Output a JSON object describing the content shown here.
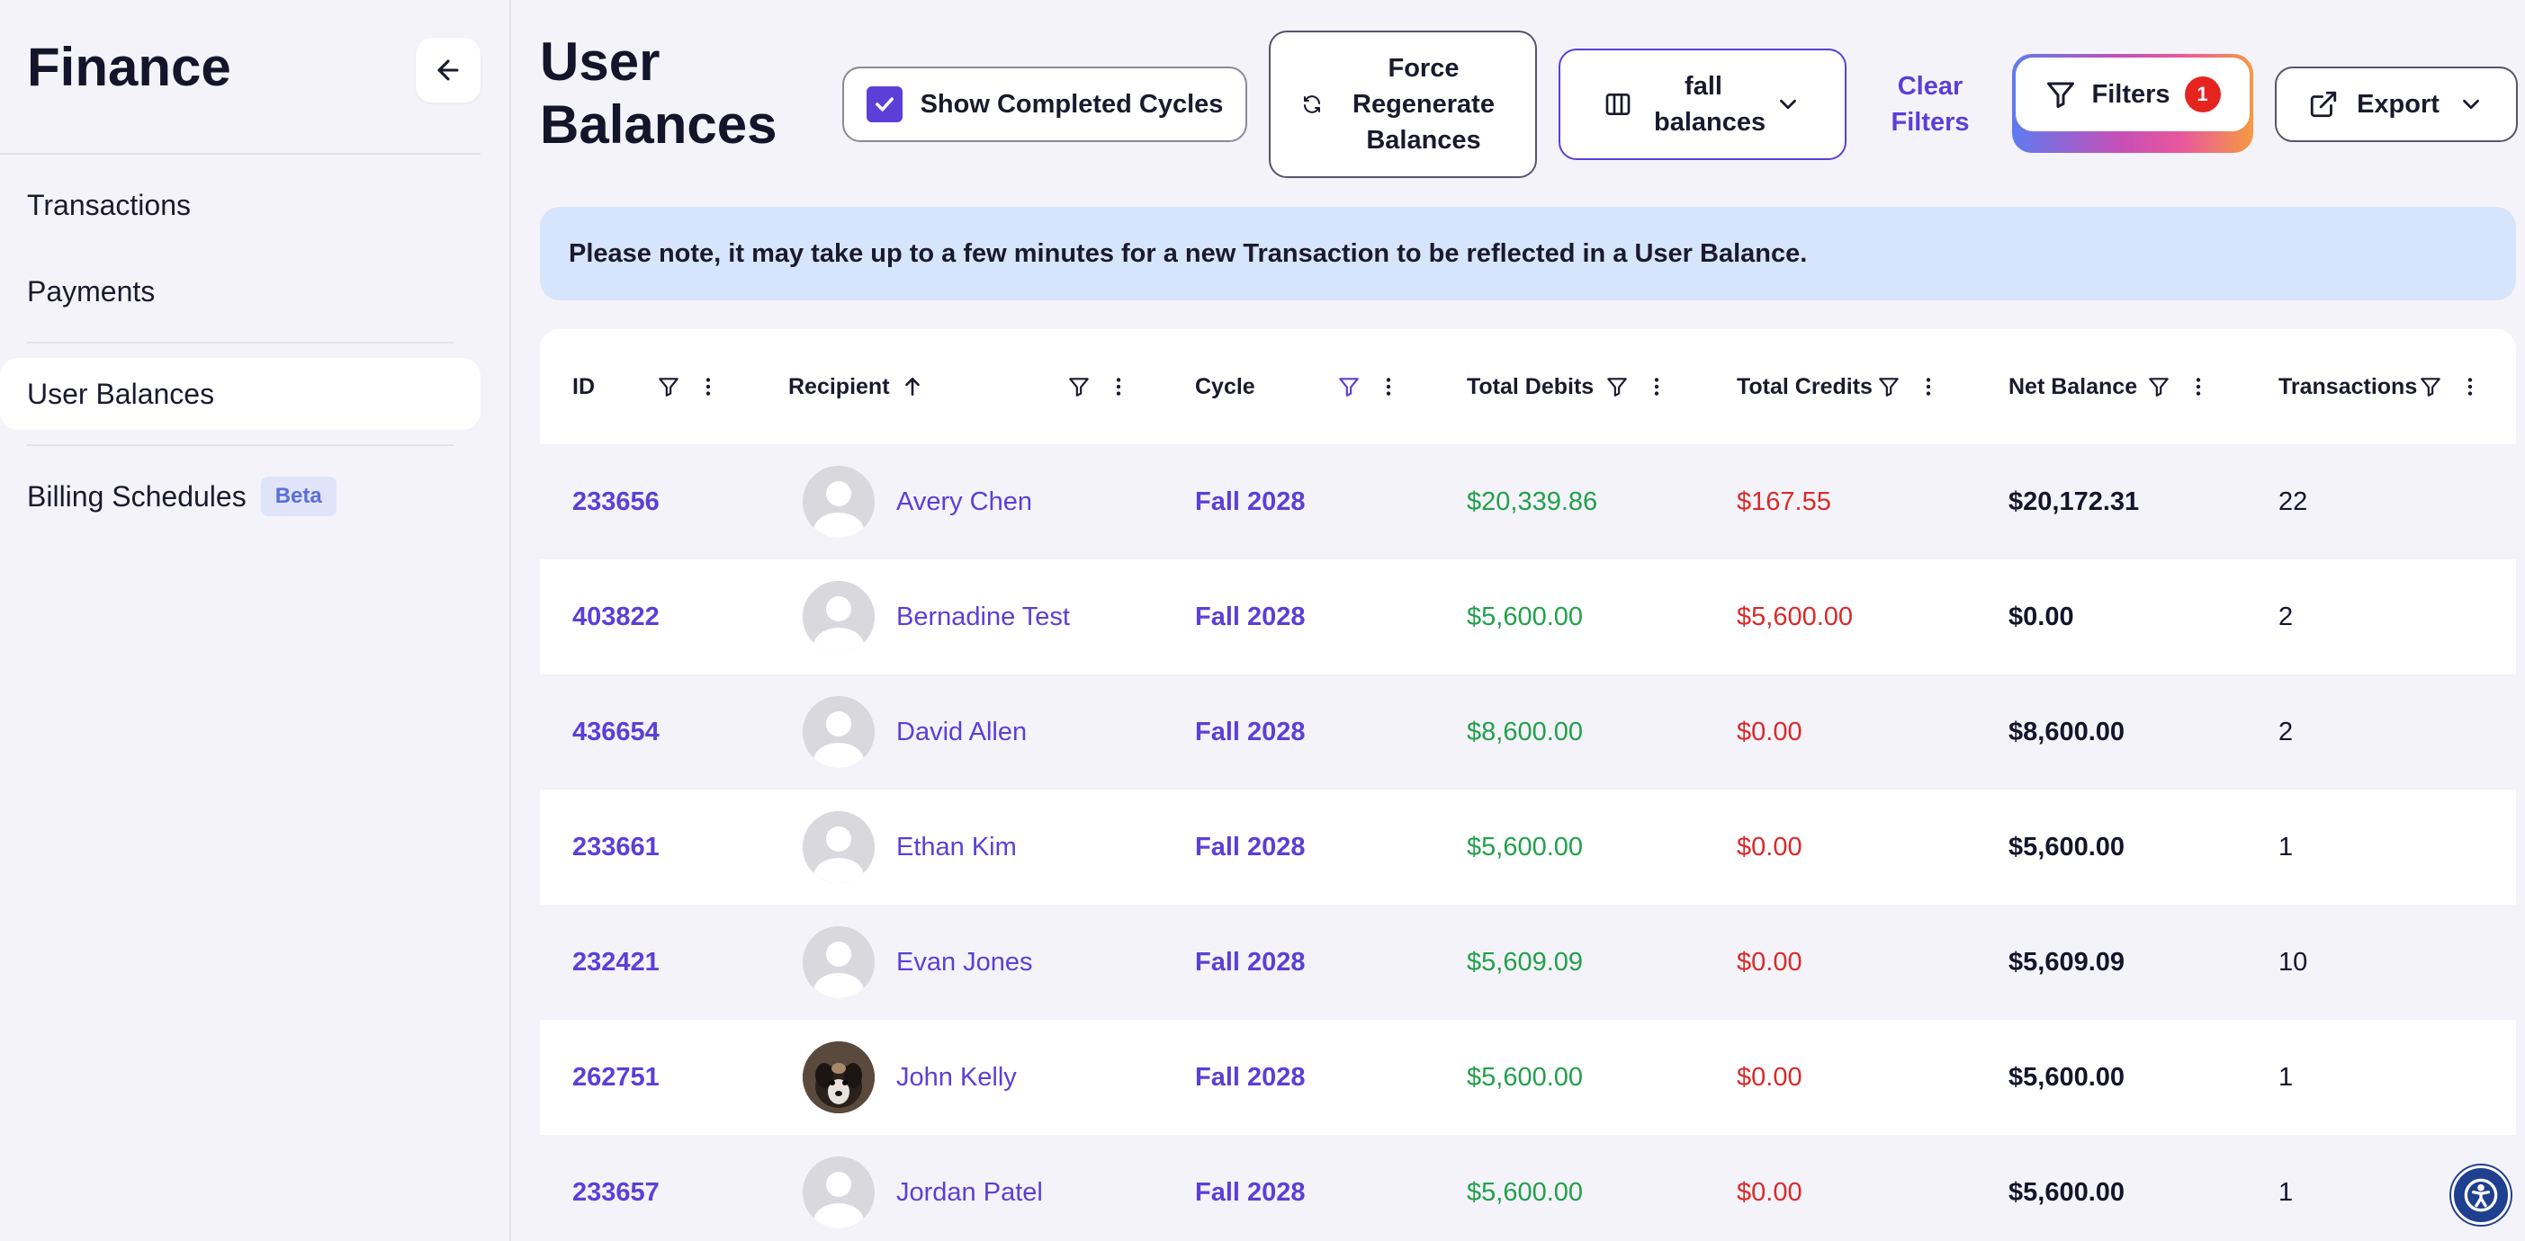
{
  "sidebar": {
    "title": "Finance",
    "items": [
      {
        "label": "Transactions"
      },
      {
        "label": "Payments"
      },
      {
        "label": "User Balances"
      },
      {
        "label": "Billing Schedules",
        "badge": "Beta"
      }
    ]
  },
  "header": {
    "title": "User Balances",
    "show_completed_label": "Show Completed Cycles",
    "show_completed_checked": true,
    "force_regenerate_label": "Force Regenerate Balances",
    "view_label": "fall balances",
    "clear_filters_label": "Clear Filters",
    "filters_label": "Filters",
    "filters_count": "1",
    "export_label": "Export"
  },
  "notice": "Please note, it may take up to a few minutes for a new Transaction to be reflected in a User Balance.",
  "table": {
    "columns": [
      "ID",
      "Recipient",
      "Cycle",
      "Total Debits",
      "Total Credits",
      "Net Balance",
      "Transactions"
    ],
    "sorted_column": "Recipient",
    "sort_direction": "ascending",
    "active_filter_column": "Cycle",
    "rows": [
      {
        "id": "233656",
        "name": "Avery Chen",
        "cycle": "Fall 2028",
        "debits": "$20,339.86",
        "credits": "$167.55",
        "net": "$20,172.31",
        "tx": "22",
        "photo": false
      },
      {
        "id": "403822",
        "name": "Bernadine Test",
        "cycle": "Fall 2028",
        "debits": "$5,600.00",
        "credits": "$5,600.00",
        "net": "$0.00",
        "tx": "2",
        "photo": false
      },
      {
        "id": "436654",
        "name": "David Allen",
        "cycle": "Fall 2028",
        "debits": "$8,600.00",
        "credits": "$0.00",
        "net": "$8,600.00",
        "tx": "2",
        "photo": false
      },
      {
        "id": "233661",
        "name": "Ethan Kim",
        "cycle": "Fall 2028",
        "debits": "$5,600.00",
        "credits": "$0.00",
        "net": "$5,600.00",
        "tx": "1",
        "photo": false
      },
      {
        "id": "232421",
        "name": "Evan Jones",
        "cycle": "Fall 2028",
        "debits": "$5,609.09",
        "credits": "$0.00",
        "net": "$5,609.09",
        "tx": "10",
        "photo": false
      },
      {
        "id": "262751",
        "name": "John Kelly",
        "cycle": "Fall 2028",
        "debits": "$5,600.00",
        "credits": "$0.00",
        "net": "$5,600.00",
        "tx": "1",
        "photo": true
      },
      {
        "id": "233657",
        "name": "Jordan Patel",
        "cycle": "Fall 2028",
        "debits": "$5,600.00",
        "credits": "$0.00",
        "net": "$5,600.00",
        "tx": "1",
        "photo": false
      }
    ]
  },
  "colors": {
    "accent": "#5b3fd6",
    "debit": "#22a04b",
    "credit": "#d92a2a",
    "notice_bg": "#d6e4fc",
    "badge": "#e5241f"
  },
  "icons": [
    "back-arrow-icon",
    "checkbox-checked-icon",
    "refresh-icon",
    "columns-icon",
    "chevron-down-icon",
    "filter-icon",
    "kebab-menu-icon",
    "sort-arrow-up-icon",
    "export-icon",
    "avatar-placeholder-icon",
    "accessibility-icon"
  ]
}
